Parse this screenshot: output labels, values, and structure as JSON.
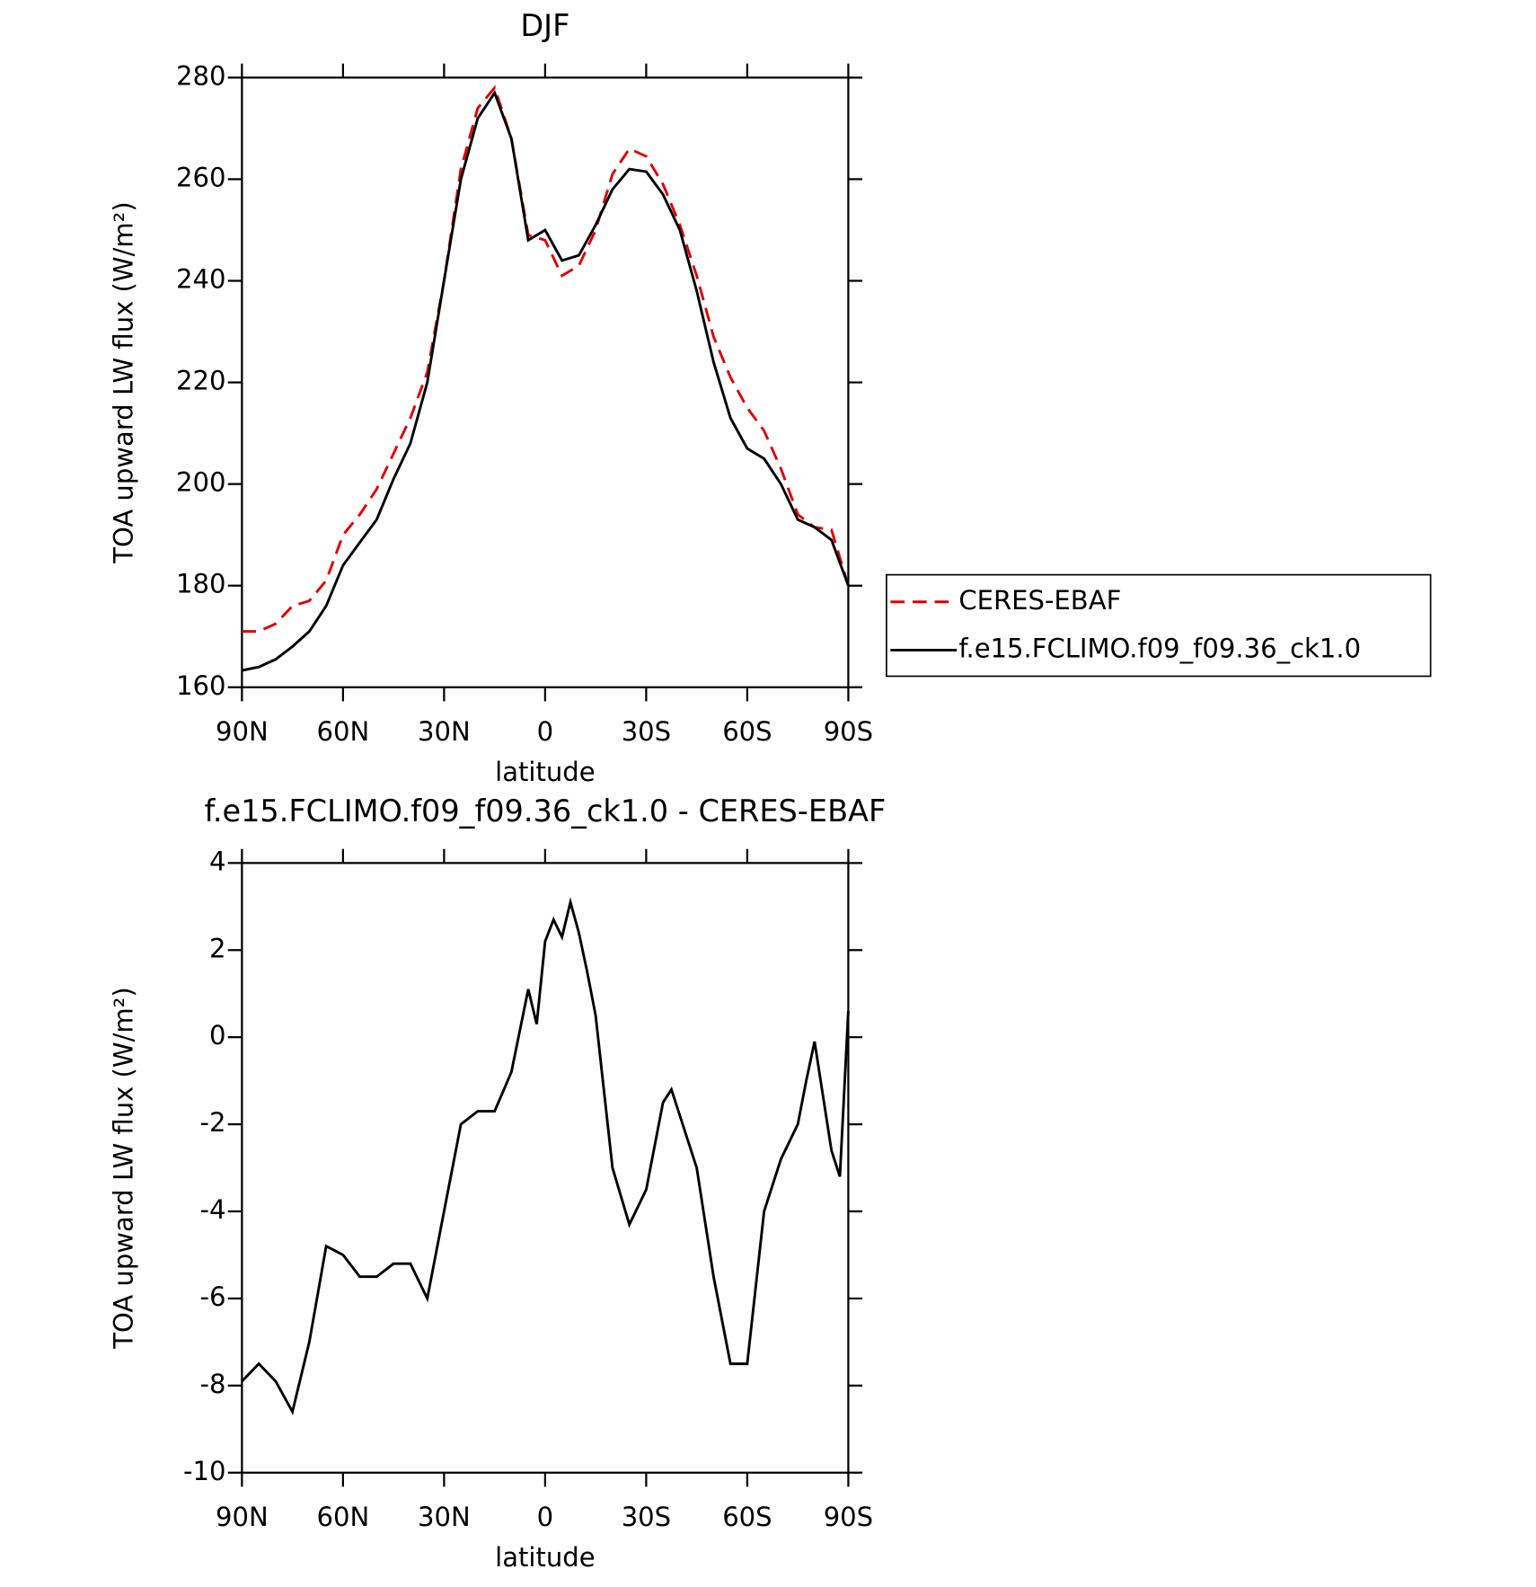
{
  "chart_data": [
    {
      "type": "line",
      "title": "DJF",
      "xlabel": "latitude",
      "ylabel": "TOA upward LW flux (W/m²)",
      "x": [
        90,
        85,
        80,
        75,
        70,
        65,
        60,
        55,
        50,
        45,
        40,
        35,
        30,
        25,
        20,
        15,
        10,
        5,
        0,
        -5,
        -10,
        -15,
        -20,
        -25,
        -30,
        -35,
        -40,
        -45,
        -50,
        -55,
        -60,
        -65,
        -70,
        -75,
        -80,
        -85,
        -90
      ],
      "series": [
        {
          "name": "CERES-EBAF",
          "color": "#e00000",
          "dashed": true,
          "values": [
            171,
            171,
            172.5,
            176,
            177,
            181,
            190,
            194,
            199,
            206,
            213,
            222,
            240,
            262,
            274,
            278,
            268,
            249,
            248,
            241,
            243,
            250,
            261,
            266,
            264.5,
            259,
            251,
            241,
            229,
            221,
            215,
            210.5,
            203,
            194,
            191.5,
            191,
            180
          ]
        },
        {
          "name": "f.e15.FCLIMO.f09_f09.36_ck1.0",
          "color": "#000000",
          "dashed": false,
          "values": [
            163.3,
            164,
            165.5,
            168,
            171,
            176,
            184,
            188.5,
            193,
            201,
            208,
            220,
            240,
            260,
            272,
            277,
            268,
            248,
            250,
            244,
            245,
            251,
            258,
            262,
            261.5,
            257,
            250,
            238,
            224,
            213,
            207,
            205,
            200,
            193,
            191.5,
            189,
            180
          ]
        }
      ],
      "xlim": [
        90,
        -90
      ],
      "xticks": [
        {
          "value": 90,
          "label": "90N"
        },
        {
          "value": 60,
          "label": "60N"
        },
        {
          "value": 30,
          "label": "30N"
        },
        0,
        {
          "value": -30,
          "label": "30S"
        },
        {
          "value": -60,
          "label": "60S"
        },
        {
          "value": -90,
          "label": "90S"
        }
      ],
      "ylim": [
        160,
        280
      ],
      "yticks": [
        160,
        180,
        200,
        220,
        240,
        260,
        280
      ],
      "legend": "right"
    },
    {
      "type": "line",
      "title": "f.e15.FCLIMO.f09_f09.36_ck1.0 - CERES-EBAF",
      "xlabel": "latitude",
      "ylabel": "TOA upward LW flux (W/m²)",
      "x": [
        90,
        85,
        80,
        75,
        70,
        65,
        60,
        55,
        50,
        45,
        40,
        35,
        30,
        25,
        20,
        15,
        10,
        5,
        2.5,
        0,
        -2.5,
        -5,
        -7.5,
        -10,
        -12.5,
        -15,
        -20,
        -25,
        -30,
        -35,
        -37.5,
        -40,
        -45,
        -50,
        -55,
        -60,
        -65,
        -70,
        -75,
        -77.5,
        -80,
        -85,
        -87.5,
        -90
      ],
      "values": [
        -7.9,
        -7.5,
        -7.9,
        -8.6,
        -7,
        -4.8,
        -5,
        -5.5,
        -5.5,
        -5.2,
        -5.2,
        -6,
        -4,
        -2,
        -1.7,
        -1.7,
        -0.8,
        1.1,
        0.3,
        2.2,
        2.7,
        2.3,
        3.1,
        2.4,
        1.5,
        0.5,
        -3,
        -4.3,
        -3.5,
        -1.5,
        -1.2,
        -1.8,
        -3,
        -5.5,
        -7.5,
        -7.5,
        -4,
        -2.8,
        -2,
        -1,
        -0.1,
        -2.6,
        -3.2,
        0.6
      ],
      "color": "#000000",
      "xlim": [
        90,
        -90
      ],
      "xticks": [
        {
          "value": 90,
          "label": "90N"
        },
        {
          "value": 60,
          "label": "60N"
        },
        {
          "value": 30,
          "label": "30N"
        },
        0,
        {
          "value": -30,
          "label": "30S"
        },
        {
          "value": -60,
          "label": "60S"
        },
        {
          "value": -90,
          "label": "90S"
        }
      ],
      "ylim": [
        -10,
        4
      ],
      "yticks": [
        -10,
        -8,
        -6,
        -4,
        -2,
        0,
        2,
        4
      ]
    }
  ]
}
